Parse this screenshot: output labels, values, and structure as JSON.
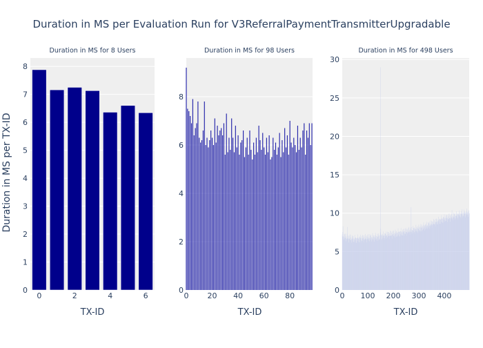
{
  "page": {
    "title": "Duration in MS per Evaluation Run for V3ReferralPaymentTransmitterUpgradable",
    "ylabel": "Duration in MS per TX-ID",
    "xlabel": "TX-ID"
  },
  "colors": {
    "plot_bg": "#efefef",
    "grid": "#ffffff",
    "bar_dark": "#00008b",
    "bar_light": "#c7cfec",
    "text": "#2a3f5f"
  },
  "chart_data": [
    {
      "type": "bar",
      "subtitle": "Duration in MS for 8 Users",
      "xlabel": "TX-ID",
      "ylabel": "Duration in MS per TX-ID",
      "x": [
        0,
        1,
        2,
        3,
        4,
        5,
        6
      ],
      "values": [
        7.88,
        7.16,
        7.25,
        7.13,
        6.36,
        6.6,
        6.34
      ],
      "xlim": [
        -0.5,
        6.5
      ],
      "ylim": [
        0,
        8.3
      ],
      "xticks": [
        0,
        2,
        4,
        6
      ],
      "yticks": [
        0,
        1,
        2,
        3,
        4,
        5,
        6,
        7,
        8
      ],
      "grid": true
    },
    {
      "type": "bar",
      "subtitle": "Duration in MS for 98 Users",
      "xlabel": "TX-ID",
      "x_start": 0,
      "values": [
        9.2,
        7.5,
        7.4,
        7.2,
        6.9,
        7.9,
        6.4,
        6.7,
        6.9,
        7.8,
        6.3,
        6.1,
        6.2,
        6.6,
        7.8,
        6.0,
        6.3,
        5.9,
        6.2,
        6.6,
        6.3,
        6.0,
        7.1,
        6.1,
        6.8,
        6.4,
        6.6,
        6.7,
        6.4,
        6.9,
        5.6,
        7.3,
        5.7,
        6.3,
        5.8,
        7.1,
        6.3,
        5.7,
        6.8,
        5.9,
        6.4,
        5.6,
        6.1,
        6.2,
        6.6,
        5.5,
        5.9,
        6.3,
        5.6,
        6.6,
        5.8,
        5.4,
        6.1,
        5.6,
        6.3,
        5.7,
        6.8,
        6.2,
        5.8,
        6.5,
        5.9,
        5.6,
        6.3,
        5.7,
        6.4,
        5.4,
        5.5,
        6.3,
        5.8,
        6.1,
        5.6,
        5.9,
        6.5,
        5.5,
        6.2,
        5.7,
        6.7,
        5.9,
        6.4,
        5.6,
        7.0,
        6.1,
        5.9,
        6.3,
        6.0,
        5.7,
        6.8,
        5.8,
        6.3,
        5.9,
        6.6,
        6.9,
        5.6,
        6.6,
        6.3,
        6.9,
        6.0,
        6.9
      ],
      "xlim": [
        0,
        97.5
      ],
      "ylim": [
        0,
        9.6
      ],
      "xticks": [
        0,
        20,
        40,
        60,
        80
      ],
      "yticks": [
        0,
        2,
        4,
        6,
        8
      ],
      "grid": true
    },
    {
      "type": "bar",
      "subtitle": "Duration in MS for 498 Users",
      "xlabel": "TX-ID",
      "x_start": 0,
      "base_series": [
        [
          0,
          7.0
        ],
        [
          50,
          6.6
        ],
        [
          100,
          6.8
        ],
        [
          140,
          6.9
        ],
        [
          200,
          7.3
        ],
        [
          250,
          7.6
        ],
        [
          300,
          8.0
        ],
        [
          350,
          8.6
        ],
        [
          400,
          9.3
        ],
        [
          450,
          9.7
        ],
        [
          497,
          10.1
        ]
      ],
      "spikes": [
        [
          150,
          29.0
        ],
        [
          151,
          8.0
        ],
        [
          270,
          10.8
        ],
        [
          20,
          8.2
        ],
        [
          3,
          8.3
        ],
        [
          430,
          10.4
        ],
        [
          470,
          10.5
        ]
      ],
      "xlim": [
        0,
        497.5
      ],
      "ylim": [
        0,
        30.2
      ],
      "xticks": [
        0,
        100,
        200,
        300,
        400
      ],
      "yticks": [
        0,
        5,
        10,
        15,
        20,
        25,
        30
      ],
      "grid": true
    }
  ]
}
